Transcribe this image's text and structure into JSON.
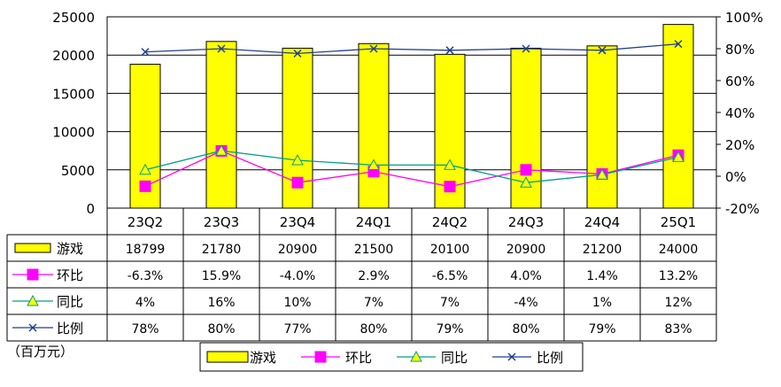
{
  "chart_data": {
    "type": "bar",
    "categories": [
      "23Q2",
      "23Q3",
      "23Q4",
      "24Q1",
      "24Q2",
      "24Q3",
      "24Q4",
      "25Q1"
    ],
    "y_left": {
      "min": 0,
      "max": 25000,
      "step": 5000,
      "ticks": [
        "0",
        "5000",
        "10000",
        "15000",
        "20000",
        "25000"
      ]
    },
    "y_right": {
      "min": -20,
      "max": 100,
      "step": 20,
      "ticks": [
        "-20%",
        "0%",
        "20%",
        "40%",
        "60%",
        "80%",
        "100%"
      ]
    },
    "grid": true,
    "legend_position": "bottom",
    "unit_note": "（百万元）",
    "series": [
      {
        "name": "游戏",
        "type": "bar",
        "axis": "left",
        "color": "#FFFF00",
        "marker": "box",
        "values": [
          18799,
          21780,
          20900,
          21500,
          20100,
          20900,
          21200,
          24000
        ],
        "labels": [
          "18799",
          "21780",
          "20900",
          "21500",
          "20100",
          "20900",
          "21200",
          "24000"
        ]
      },
      {
        "name": "环比",
        "type": "line",
        "axis": "right",
        "color": "#FF00FF",
        "marker": "square",
        "values": [
          -6.3,
          15.9,
          -4.0,
          2.9,
          -6.5,
          4.0,
          1.4,
          13.2
        ],
        "labels": [
          "-6.3%",
          "15.9%",
          "-4.0%",
          "2.9%",
          "-6.5%",
          "4.0%",
          "1.4%",
          "13.2%"
        ]
      },
      {
        "name": "同比",
        "type": "line",
        "axis": "right",
        "color": "#00A08A",
        "marker": "triangle",
        "values": [
          4,
          16,
          10,
          7,
          7,
          -4,
          1,
          12
        ],
        "labels": [
          "4%",
          "16%",
          "10%",
          "7%",
          "7%",
          "-4%",
          "1%",
          "12%"
        ]
      },
      {
        "name": "比例",
        "type": "line",
        "axis": "right",
        "color": "#1F3F8F",
        "marker": "x",
        "values": [
          78,
          80,
          77,
          80,
          79,
          80,
          79,
          83
        ],
        "labels": [
          "78%",
          "80%",
          "77%",
          "80%",
          "79%",
          "80%",
          "79%",
          "83%"
        ]
      }
    ]
  }
}
